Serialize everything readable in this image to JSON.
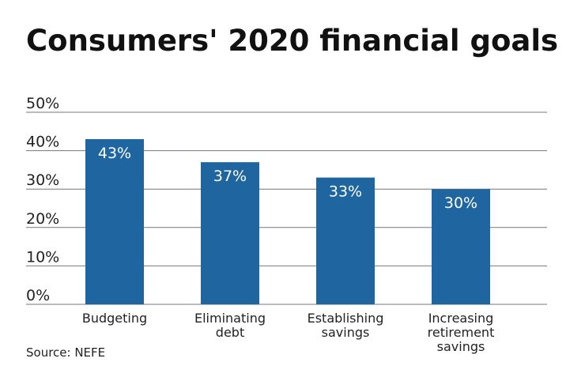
{
  "chart_data": {
    "type": "bar",
    "title": "Consumers' 2020 financial goals",
    "categories": [
      [
        "Budgeting"
      ],
      [
        "Eliminating",
        "debt"
      ],
      [
        "Establishing",
        "savings"
      ],
      [
        "Increasing",
        "retirement",
        "savings"
      ]
    ],
    "values": [
      43,
      37,
      33,
      30
    ],
    "data_labels": [
      "43%",
      "37%",
      "33%",
      "30%"
    ],
    "yticks": [
      0,
      10,
      20,
      30,
      40,
      50
    ],
    "ytick_labels": [
      "0%",
      "10%",
      "20%",
      "30%",
      "40%",
      "50%"
    ],
    "ylim": [
      0,
      50
    ],
    "xlabel": "",
    "ylabel": "",
    "grid": true,
    "source": "Source: NEFE",
    "colors": {
      "bar": "#1f66a0",
      "grid": "#777777"
    }
  }
}
